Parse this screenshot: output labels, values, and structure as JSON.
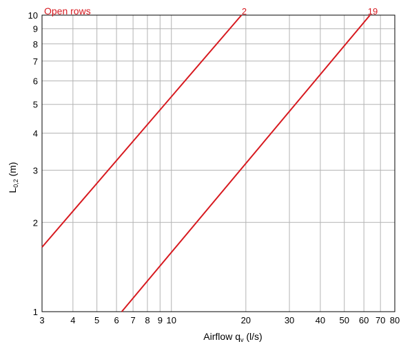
{
  "chart_data": {
    "type": "line",
    "title": "Open rows",
    "xlabel_main": "Airflow q",
    "xlabel_sub": "v",
    "xlabel_unit": " (l/s)",
    "ylabel_main": "L",
    "ylabel_sub": "0,2",
    "ylabel_unit": " (m)",
    "x_scale": "log",
    "y_scale": "log",
    "xlim": [
      3,
      80
    ],
    "ylim": [
      1,
      10
    ],
    "grid": true,
    "x_ticks": [
      3,
      4,
      5,
      6,
      7,
      8,
      9,
      10,
      20,
      30,
      40,
      50,
      60,
      70,
      80
    ],
    "y_ticks": [
      1,
      2,
      3,
      4,
      5,
      6,
      7,
      8,
      9,
      10
    ],
    "series": [
      {
        "name": "2",
        "x": [
          3,
          19.2
        ],
        "y": [
          1.65,
          10
        ]
      },
      {
        "name": "19",
        "x": [
          6.3,
          63.5
        ],
        "y": [
          1,
          10
        ]
      }
    ],
    "colors": {
      "series": "#d7191f",
      "grid": "#b3b3b3",
      "axis": "#000000",
      "title": "#d7191f"
    }
  }
}
